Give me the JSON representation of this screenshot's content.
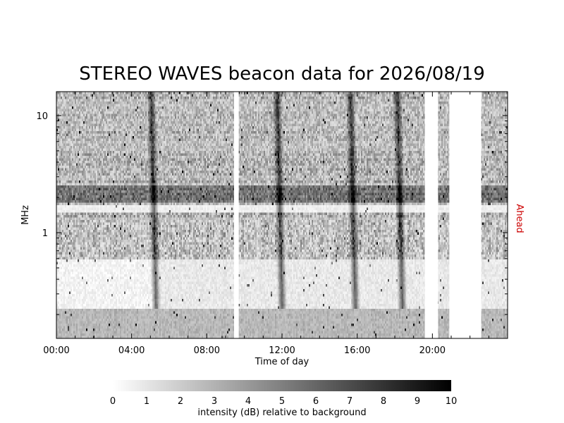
{
  "chart_data": {
    "type": "heatmap",
    "title": "STEREO WAVES beacon data for 2026/08/19",
    "xlabel": "Time of day",
    "ylabel": "MHz",
    "spacecraft_label": "Ahead",
    "spacecraft_color": "#cc0000",
    "x_tick_labels": [
      "00:00",
      "04:00",
      "08:00",
      "12:00",
      "16:00",
      "20:00"
    ],
    "x_tick_hours": [
      0,
      4,
      8,
      12,
      16,
      20
    ],
    "xlim_hours": [
      0,
      24
    ],
    "y_tick_labels": [
      "1",
      "10"
    ],
    "y_tick_values_mhz": [
      1,
      10
    ],
    "ylim_mhz": [
      0.125,
      16
    ],
    "y_scale": "log",
    "colorbar": {
      "label": "intensity (dB) relative to background",
      "tick_labels": [
        "0",
        "1",
        "2",
        "3",
        "4",
        "5",
        "6",
        "7",
        "8",
        "9",
        "10"
      ],
      "range_db": [
        0,
        10
      ],
      "color_low": "#ffffff",
      "color_high": "#000000"
    },
    "data_gaps_hours": [
      [
        9.45,
        9.7
      ],
      [
        19.6,
        20.3
      ],
      [
        20.9,
        22.6
      ]
    ],
    "type_iii_bursts_hours": [
      5.0,
      11.7,
      15.6,
      18.1
    ]
  }
}
